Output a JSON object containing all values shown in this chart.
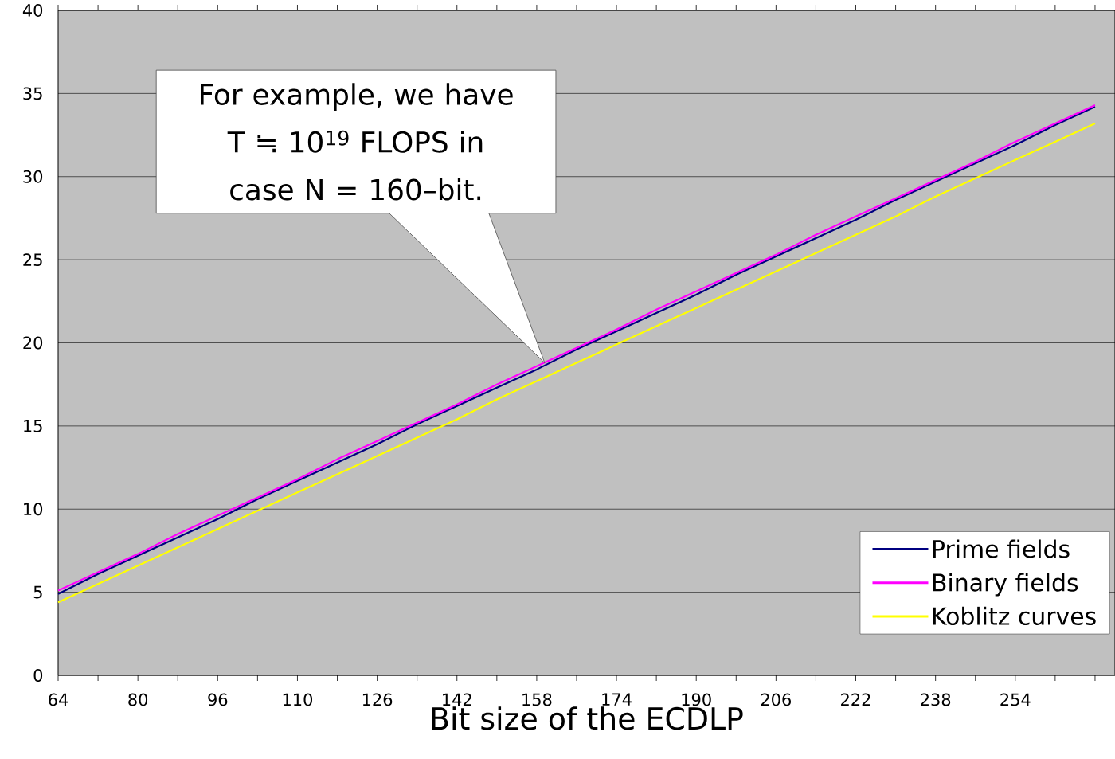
{
  "chart_data": {
    "type": "line",
    "xlabel": "Bit size of the ECDLP",
    "categories": [
      "64",
      null,
      "80",
      null,
      "96",
      null,
      "110",
      null,
      "126",
      null,
      "142",
      null,
      "158",
      null,
      "174",
      null,
      "190",
      null,
      "206",
      null,
      "222",
      null,
      "238",
      null,
      "254",
      null,
      null
    ],
    "series": [
      {
        "name": "Prime fields",
        "color": "#000080",
        "values": [
          4.9,
          6.1,
          7.2,
          8.3,
          9.4,
          10.6,
          11.7,
          12.8,
          13.9,
          15.1,
          16.2,
          17.3,
          18.4,
          19.6,
          20.7,
          21.8,
          22.9,
          24.1,
          25.2,
          26.3,
          27.4,
          28.6,
          29.7,
          30.8,
          31.9,
          33.1,
          34.2
        ]
      },
      {
        "name": "Binary fields",
        "color": "#ff00ff",
        "values": [
          5.1,
          6.2,
          7.3,
          8.5,
          9.6,
          10.7,
          11.8,
          13.0,
          14.1,
          15.2,
          16.3,
          17.5,
          18.6,
          19.7,
          20.8,
          22.0,
          23.1,
          24.2,
          25.3,
          26.5,
          27.6,
          28.7,
          29.8,
          30.9,
          32.1,
          33.2,
          34.3
        ]
      },
      {
        "name": "Koblitz curves",
        "color": "#ffff00",
        "values": [
          4.4,
          5.5,
          6.6,
          7.7,
          8.8,
          9.9,
          11.0,
          12.1,
          13.2,
          14.3,
          15.4,
          16.6,
          17.7,
          18.8,
          19.9,
          21.0,
          22.1,
          23.2,
          24.3,
          25.4,
          26.5,
          27.6,
          28.8,
          29.9,
          31.0,
          32.1,
          33.2
        ]
      }
    ],
    "ylim": [
      0,
      40
    ],
    "yticks": [
      0,
      5,
      10,
      15,
      20,
      25,
      30,
      35,
      40
    ],
    "grid": "y",
    "legend": "bottom right",
    "annotations": [
      "For example, we have T ≒ 10$^{19}$ FLOPS in case N = 160–bit."
    ]
  }
}
